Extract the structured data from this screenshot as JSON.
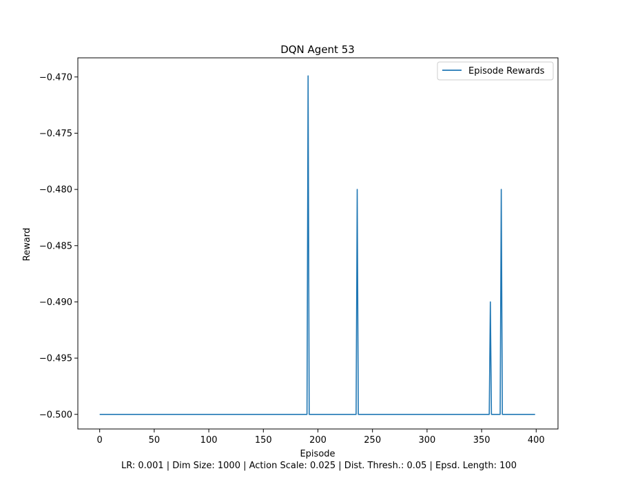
{
  "chart_data": {
    "type": "line",
    "title": "DQN Agent 53",
    "xlabel": "Episode",
    "ylabel": "Reward",
    "caption": "LR: 0.001 | Dim Size: 1000 | Action Scale: 0.025 | Dist. Thresh.: 0.05 | Epsd. Length: 100",
    "xlim": [
      -20,
      420
    ],
    "ylim": [
      -0.5013,
      -0.4683
    ],
    "xticks": [
      0,
      50,
      100,
      150,
      200,
      250,
      300,
      350,
      400
    ],
    "xtick_labels": [
      "0",
      "50",
      "100",
      "150",
      "200",
      "250",
      "300",
      "350",
      "400"
    ],
    "yticks": [
      -0.5,
      -0.495,
      -0.49,
      -0.485,
      -0.48,
      -0.475,
      -0.47
    ],
    "ytick_labels": [
      "−0.500",
      "−0.495",
      "−0.490",
      "−0.485",
      "−0.480",
      "−0.475",
      "−0.470"
    ],
    "grid": false,
    "legend_position": "top-right",
    "series": [
      {
        "name": "Episode Rewards",
        "color": "#1f77b4",
        "x": [
          0,
          189,
          190,
          191,
          192,
          235,
          236,
          237,
          357,
          358,
          359,
          367,
          368,
          369,
          399
        ],
        "y": [
          -0.5,
          -0.5,
          -0.5,
          -0.4699,
          -0.5,
          -0.5,
          -0.48,
          -0.5,
          -0.5,
          -0.49,
          -0.5,
          -0.5,
          -0.48,
          -0.5,
          -0.5
        ]
      }
    ]
  }
}
